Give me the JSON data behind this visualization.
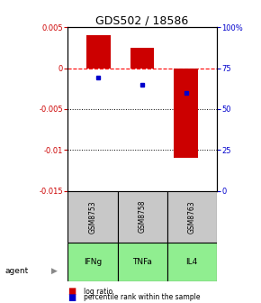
{
  "title": "GDS502 / 18586",
  "categories": [
    1,
    2,
    3
  ],
  "bar_values": [
    0.004,
    0.0025,
    -0.011
  ],
  "percentile_values": [
    0.694,
    0.647,
    0.601
  ],
  "sample_labels": [
    "GSM8753",
    "GSM8758",
    "GSM8763"
  ],
  "agent_labels": [
    "IFNg",
    "TNFa",
    "IL4"
  ],
  "ylim_left": [
    -0.015,
    0.005
  ],
  "ylim_right": [
    0,
    1.0
  ],
  "bar_color": "#cc0000",
  "blue_color": "#0000cc",
  "yticks_left": [
    0.005,
    0,
    -0.005,
    -0.01,
    -0.015
  ],
  "ytick_labels_left": [
    "0.005",
    "0",
    "-0.005",
    "-0.01",
    "-0.015"
  ],
  "yticks_right": [
    1.0,
    0.75,
    0.5,
    0.25,
    0.0
  ],
  "ytick_labels_right": [
    "100%",
    "75",
    "50",
    "25",
    "0"
  ],
  "legend_log": "log ratio",
  "legend_pct": "percentile rank within the sample",
  "agent_text": "agent",
  "gray_color": "#c8c8c8",
  "green_color": "#90ee90",
  "title_fontsize": 9,
  "tick_fontsize": 6,
  "label_fontsize": 6.5
}
